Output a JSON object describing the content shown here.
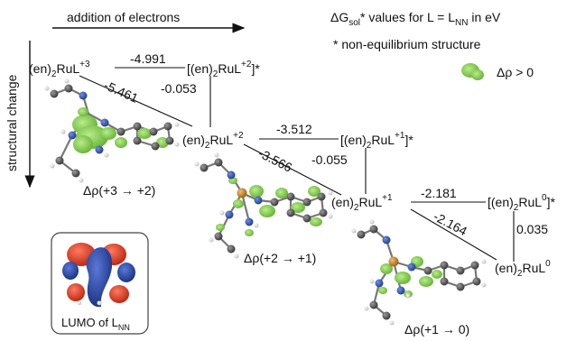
{
  "axes": {
    "horizontal": "addition of electrons",
    "vertical": "structural change"
  },
  "legend": {
    "title_main": "ΔG",
    "title_sub": "sol",
    "title_rest": "* values for L = L",
    "title_sub2": "NN",
    "title_unit": " in eV",
    "note": "* non-equilibrium structure",
    "density_label": "Δρ > 0",
    "density_color": "#7ac943"
  },
  "species": {
    "s3": {
      "base": "(en)",
      "sub": "2",
      "mid": "RuL",
      "sup": "+3",
      "tail": ""
    },
    "s2star": {
      "base": "[(en)",
      "sub": "2",
      "mid": "RuL",
      "sup": "+2",
      "tail": "]*"
    },
    "s2": {
      "base": "(en)",
      "sub": "2",
      "mid": "RuL",
      "sup": "+2",
      "tail": ""
    },
    "s1star": {
      "base": "[(en)",
      "sub": "2",
      "mid": "RuL",
      "sup": "+1",
      "tail": "]*"
    },
    "s1": {
      "base": "(en)",
      "sub": "2",
      "mid": "RuL",
      "sup": "+1",
      "tail": ""
    },
    "s0star": {
      "base": "[(en)",
      "sub": "2",
      "mid": "RuL",
      "sup": "0",
      "tail": "]*"
    },
    "s0": {
      "base": "(en)",
      "sub": "2",
      "mid": "RuL",
      "sup": "0",
      "tail": ""
    }
  },
  "energies": {
    "e1": "-4.991",
    "e2": "-0.053",
    "e3": "-5.461",
    "e4": "-3.512",
    "e5": "-0.055",
    "e6": "-3.566",
    "e7": "-2.181",
    "e8": "0.035",
    "e9": "-2.164"
  },
  "captions": {
    "c1": "Δρ(+3 → +2)",
    "c2": "Δρ(+2 → +1)",
    "c3": "Δρ(+1 → 0)"
  },
  "lumo": {
    "text": "LUMO of L",
    "sub": "NN",
    "lobe_red": "#d9341f",
    "lobe_blue": "#1f3fa8"
  },
  "colors": {
    "carbon": "#555555",
    "nitrogen": "#2b4fb0",
    "ruthenium": "#c98a2b",
    "hydrogen": "#e8e8e8"
  }
}
